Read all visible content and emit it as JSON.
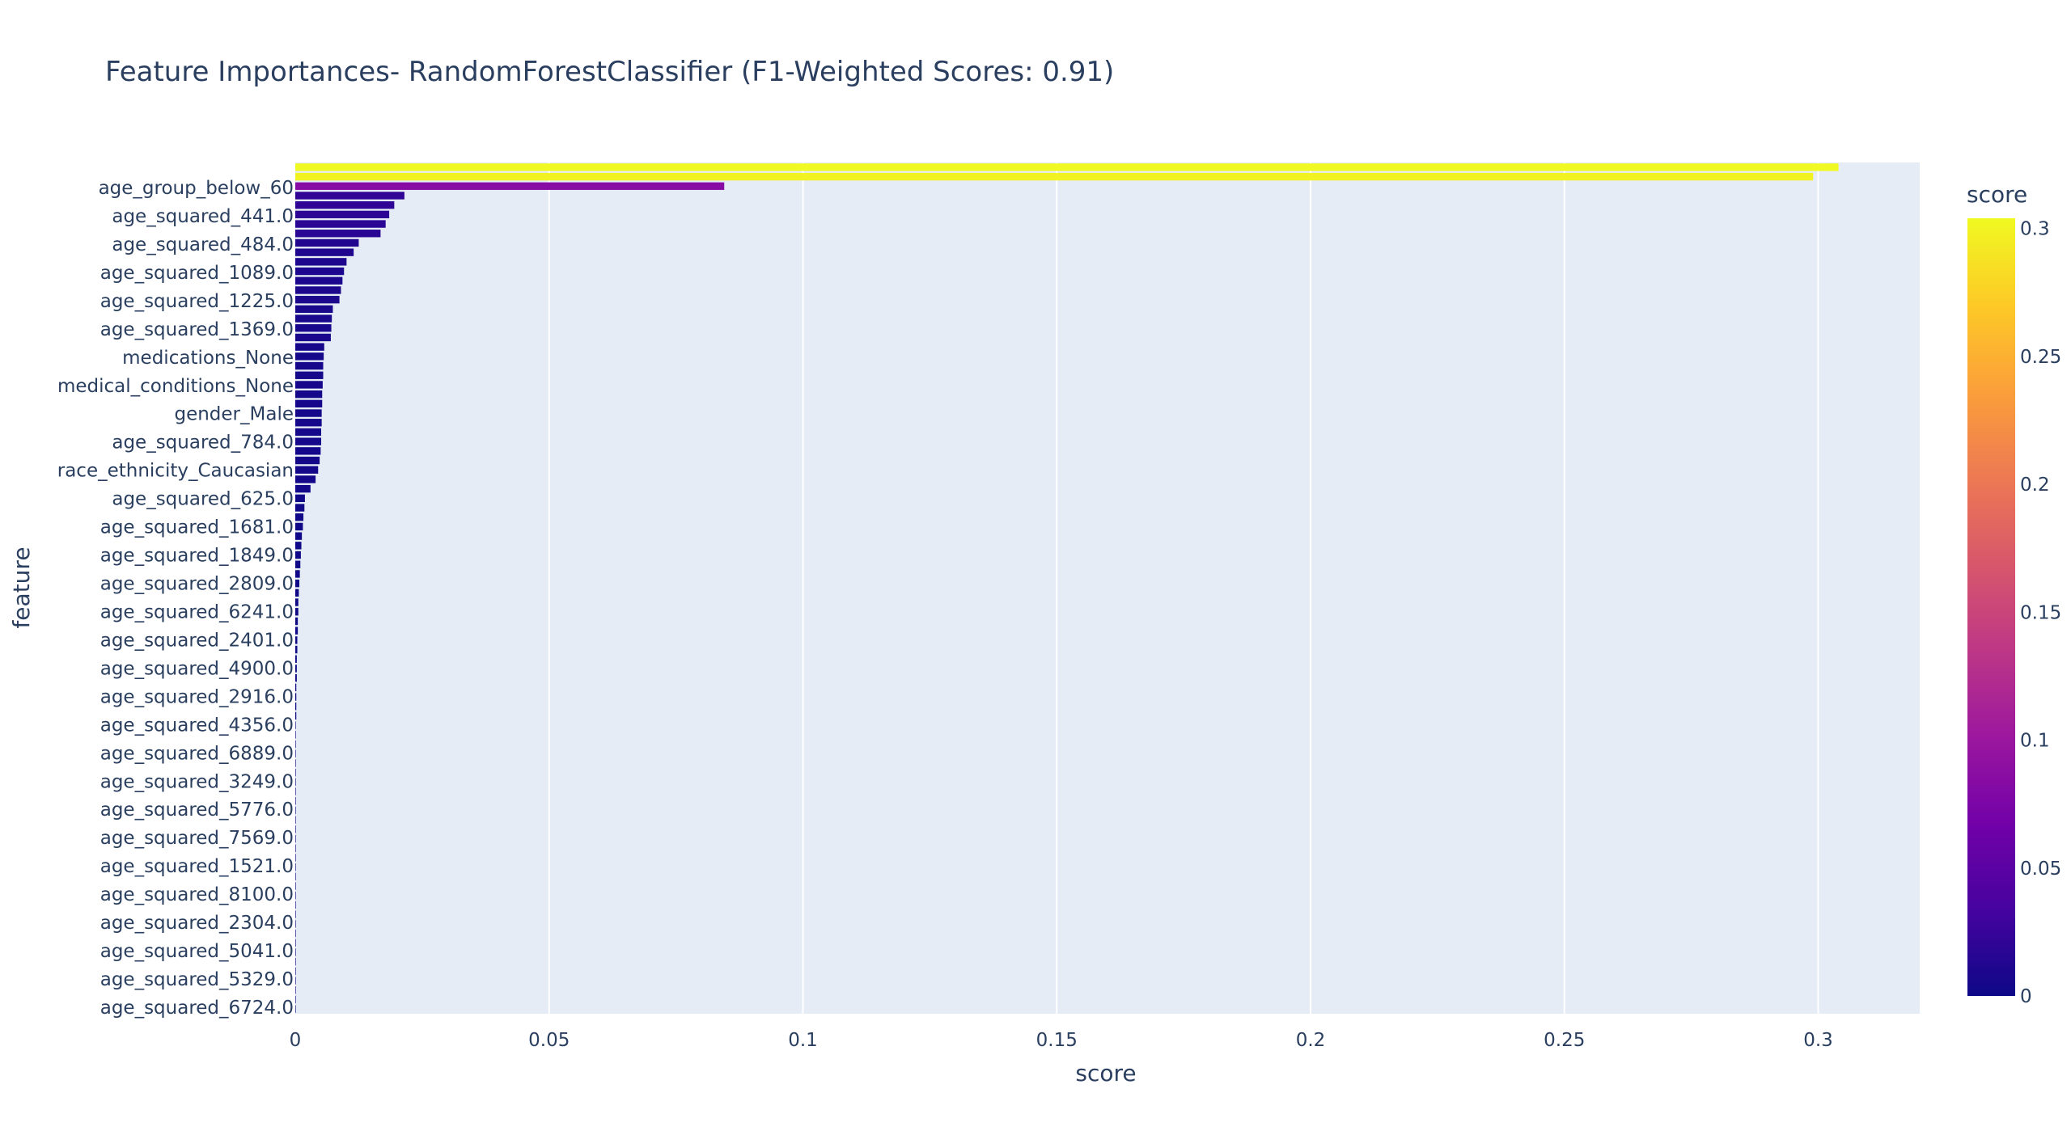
{
  "chart_data": {
    "type": "bar",
    "orientation": "horizontal",
    "title": "Feature Importances- RandomForestClassifier (F1-Weighted Scores: 0.91)",
    "xlabel": "score",
    "ylabel": "feature",
    "xlim": [
      0,
      0.32
    ],
    "x_ticks": [
      0,
      0.05,
      0.1,
      0.15,
      0.2,
      0.25,
      0.3
    ],
    "x_tick_labels": [
      "0",
      "0.05",
      "0.1",
      "0.15",
      "0.2",
      "0.25",
      "0.3"
    ],
    "grid": true,
    "plot_background": "#e5ecf6",
    "colorscale": "plasma",
    "colorscale_stops": [
      "#0d0887",
      "#46039f",
      "#7201a8",
      "#9c179e",
      "#bd3786",
      "#d8576b",
      "#ed7953",
      "#fb9f3a",
      "#fdca26",
      "#f0f921"
    ],
    "colorbar": {
      "title": "score",
      "range": [
        0,
        0.304
      ],
      "ticks": [
        0,
        0.05,
        0.1,
        0.15,
        0.2,
        0.25,
        0.3
      ],
      "tick_labels": [
        "0",
        "0.05",
        "0.1",
        "0.15",
        "0.2",
        "0.25",
        "0.3"
      ]
    },
    "y_tick_labels": [
      "age_group_below_60",
      "age_squared_441.0",
      "age_squared_484.0",
      "age_squared_1089.0",
      "age_squared_1225.0",
      "age_squared_1369.0",
      "medications_None",
      "medical_conditions_None",
      "gender_Male",
      "age_squared_784.0",
      "race_ethnicity_Caucasian",
      "age_squared_625.0",
      "age_squared_1681.0",
      "age_squared_1849.0",
      "age_squared_2809.0",
      "age_squared_6241.0",
      "age_squared_2401.0",
      "age_squared_4900.0",
      "age_squared_2916.0",
      "age_squared_4356.0",
      "age_squared_6889.0",
      "age_squared_3249.0",
      "age_squared_5776.0",
      "age_squared_7569.0",
      "age_squared_1521.0",
      "age_squared_8100.0",
      "age_squared_2304.0",
      "age_squared_5041.0",
      "age_squared_5329.0",
      "age_squared_6724.0"
    ],
    "values": [
      0.304,
      0.299,
      0.0845,
      0.0215,
      0.0195,
      0.0185,
      0.0178,
      0.0168,
      0.0125,
      0.0115,
      0.0101,
      0.0096,
      0.0093,
      0.009,
      0.0087,
      0.0074,
      0.0072,
      0.0071,
      0.007,
      0.0057,
      0.0056,
      0.0055,
      0.0055,
      0.0054,
      0.0053,
      0.0053,
      0.0052,
      0.0052,
      0.0051,
      0.0051,
      0.005,
      0.0048,
      0.0045,
      0.004,
      0.003,
      0.0019,
      0.0018,
      0.0016,
      0.0015,
      0.0013,
      0.0012,
      0.0011,
      0.001,
      0.0009,
      0.0008,
      0.0007,
      0.0006,
      0.0006,
      0.0005,
      0.0005,
      0.0004,
      0.0004,
      0.0003,
      0.0003,
      0.0003,
      0.0002,
      0.0002,
      0.0002,
      0.0002,
      0.0001,
      0.0001,
      0.0001,
      0.0001,
      0.0001,
      0.0001,
      0.0001,
      0.0001,
      0.0001,
      0.0001,
      0.0001,
      0.0001,
      0.0001,
      0.0001,
      0.0001,
      0.0001,
      0.0001,
      0.0001,
      0.0001,
      0.0001,
      0.0001,
      0.0001,
      0.0001,
      0.0001,
      0.0001,
      0.0001,
      0.0001,
      0.0001,
      0.0001,
      0.0001,
      0.0001
    ]
  }
}
